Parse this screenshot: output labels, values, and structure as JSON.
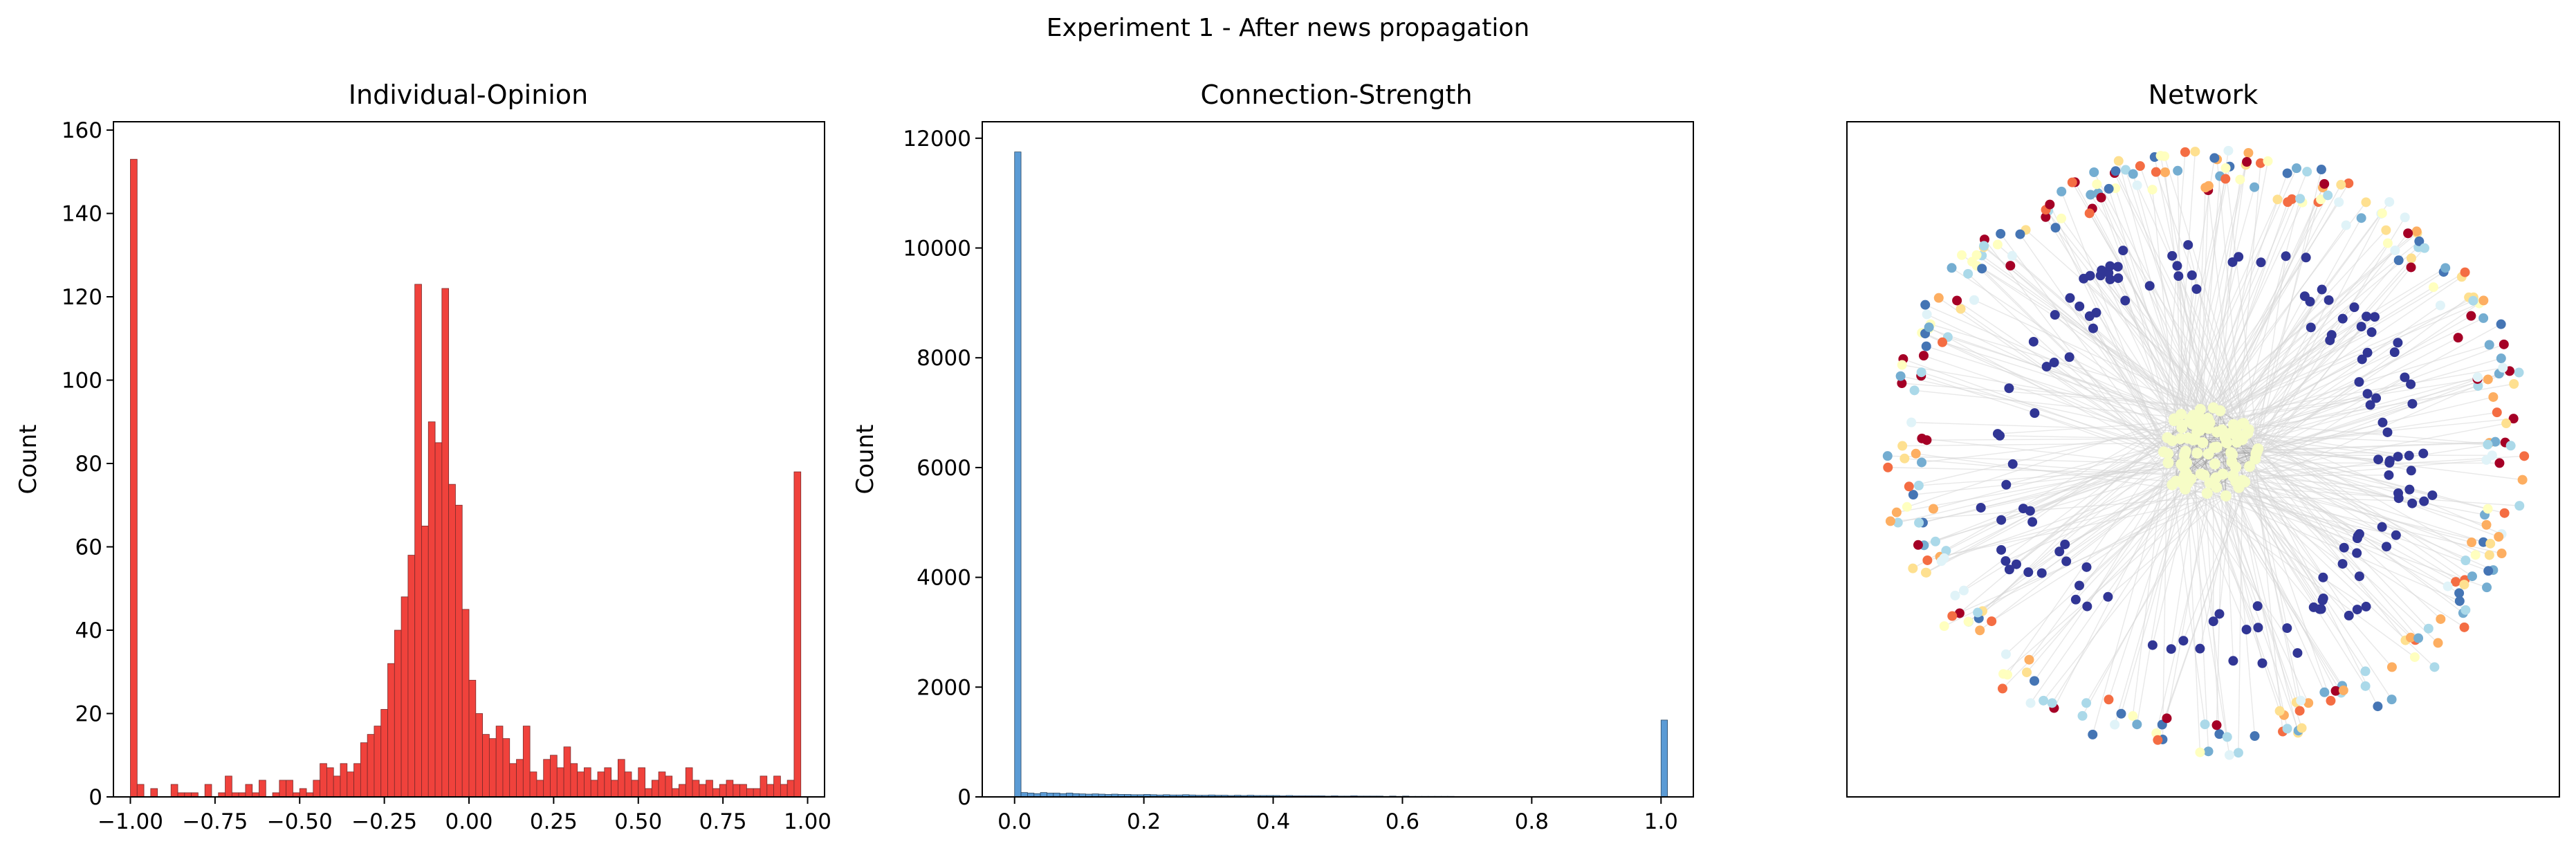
{
  "figure": {
    "suptitle": "Experiment 1 - After news propagation"
  },
  "chart_data": [
    {
      "type": "bar",
      "title": "Individual-Opinion",
      "xlabel": "",
      "ylabel": "Count",
      "bar_color": "#f0423c",
      "edge_color": "#7a2a2a",
      "xlim": [
        -1.05,
        1.05
      ],
      "ylim": [
        0,
        162
      ],
      "xticks": [
        -1.0,
        -0.75,
        -0.5,
        -0.25,
        0.0,
        0.25,
        0.5,
        0.75,
        1.0
      ],
      "xtick_labels": [
        "−1.00",
        "−0.75",
        "−0.50",
        "−0.25",
        "0.00",
        "0.25",
        "0.50",
        "0.75",
        "1.00"
      ],
      "yticks": [
        0,
        20,
        40,
        60,
        80,
        100,
        120,
        140,
        160
      ],
      "ytick_labels": [
        "0",
        "20",
        "40",
        "60",
        "80",
        "100",
        "120",
        "140",
        "160"
      ],
      "bin_start": -1.0,
      "bin_width": 0.02,
      "values": [
        153,
        3,
        0,
        2,
        0,
        0,
        3,
        1,
        1,
        1,
        0,
        3,
        0,
        1,
        5,
        1,
        1,
        3,
        1,
        4,
        0,
        1,
        4,
        4,
        1,
        2,
        1,
        4,
        8,
        7,
        5,
        8,
        6,
        8,
        13,
        15,
        17,
        21,
        32,
        40,
        48,
        58,
        123,
        65,
        90,
        85,
        122,
        75,
        70,
        45,
        28,
        20,
        15,
        14,
        17,
        14,
        8,
        9,
        17,
        6,
        4,
        9,
        10,
        7,
        12,
        8,
        6,
        7,
        4,
        6,
        7,
        4,
        9,
        6,
        4,
        7,
        2,
        4,
        6,
        5,
        2,
        3,
        7,
        4,
        3,
        4,
        2,
        3,
        4,
        3,
        3,
        2,
        2,
        5,
        3,
        5,
        3,
        4,
        78
      ]
    },
    {
      "type": "bar",
      "title": "Connection-Strength",
      "xlabel": "",
      "ylabel": "Count",
      "bar_color": "#5b9bd5",
      "edge_color": "#2c4a66",
      "xlim": [
        -0.05,
        1.05
      ],
      "ylim": [
        0,
        12300
      ],
      "xticks": [
        0.0,
        0.2,
        0.4,
        0.6,
        0.8,
        1.0
      ],
      "xtick_labels": [
        "0.0",
        "0.2",
        "0.4",
        "0.6",
        "0.8",
        "1.0"
      ],
      "yticks": [
        0,
        2000,
        4000,
        6000,
        8000,
        10000,
        12000
      ],
      "ytick_labels": [
        "0",
        "2000",
        "4000",
        "6000",
        "8000",
        "10000",
        "12000"
      ],
      "bin_start": 0.0,
      "bin_width": 0.01,
      "values": [
        11750,
        80,
        70,
        60,
        80,
        70,
        70,
        60,
        70,
        60,
        55,
        50,
        55,
        50,
        45,
        50,
        45,
        45,
        40,
        40,
        45,
        40,
        35,
        40,
        35,
        35,
        40,
        35,
        30,
        30,
        35,
        30,
        30,
        25,
        30,
        25,
        30,
        25,
        25,
        25,
        25,
        20,
        25,
        20,
        20,
        20,
        20,
        20,
        15,
        20,
        15,
        15,
        20,
        15,
        15,
        15,
        15,
        10,
        15,
        10,
        15,
        10,
        10,
        10,
        10,
        10,
        10,
        10,
        8,
        8,
        8,
        8,
        8,
        6,
        6,
        6,
        6,
        6,
        5,
        5,
        5,
        5,
        4,
        4,
        4,
        4,
        3,
        3,
        3,
        3,
        3,
        2,
        2,
        2,
        2,
        2,
        1,
        1,
        1,
        1,
        1400
      ]
    },
    {
      "type": "network",
      "title": "Network",
      "ring_node_colors": [
        "#a50026",
        "#f46d43",
        "#fdae61",
        "#fee090",
        "#ffffbf",
        "#e0f3f8",
        "#abd9e9",
        "#74add1",
        "#4575b4"
      ],
      "inner_node_color": "#313695",
      "core_node_color": "#f6fcc6",
      "edge_color": "#d6d6d6"
    }
  ]
}
